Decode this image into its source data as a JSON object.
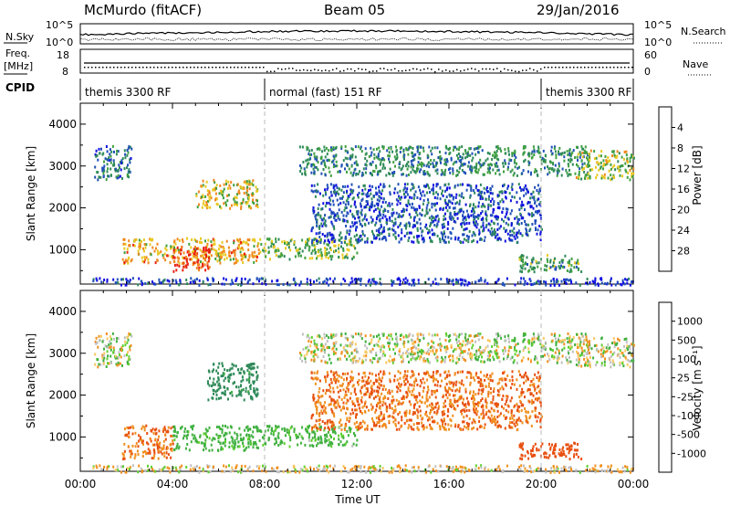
{
  "header": {
    "station": "McMurdo (fitACF)",
    "beam": "Beam 05",
    "date": "29/Jan/2016"
  },
  "top_panels": {
    "nsky_label": "N.Sky",
    "nsky_ticks_left": [
      "10^5",
      "10^0"
    ],
    "nsearch_label": "N.Search",
    "nsearch_ticks_right": [
      "10^5",
      "10^0"
    ],
    "freq_label_1": "Freq.",
    "freq_label_2": "[MHz]",
    "freq_ticks_left": [
      "18",
      "8"
    ],
    "nave_label": "Nave",
    "nave_ticks_right": [
      "60",
      "0"
    ],
    "cpid_label": "CPID",
    "cpid_segments": [
      {
        "label": "themis 3300 RF",
        "start_hour": 0,
        "end_hour": 8
      },
      {
        "label": "normal (fast) 151 RF",
        "start_hour": 8,
        "end_hour": 20
      },
      {
        "label": "themis 3300 RF",
        "start_hour": 20,
        "end_hour": 24
      }
    ]
  },
  "chart_data": [
    {
      "type": "heatmap",
      "panel": "power",
      "ylabel": "Slant Range [km]",
      "xlabel": "",
      "xlim": [
        0,
        24
      ],
      "ylim": [
        180,
        4500
      ],
      "yticks": [
        1000,
        2000,
        3000,
        4000
      ],
      "colorbar": {
        "label": "Power [dB]",
        "ticks": [
          "4",
          "8",
          "12",
          "16",
          "20",
          "24",
          "28"
        ],
        "colors": [
          "#1010e0",
          "#2050b8",
          "#2f8a5a",
          "#40a040",
          "#e8c820",
          "#f08820",
          "#e82010"
        ]
      },
      "regions": [
        {
          "t0": 0.6,
          "t1": 2.2,
          "r0": 2700,
          "r1": 3500,
          "level": 10
        },
        {
          "t0": 1.8,
          "t1": 7.8,
          "r0": 700,
          "r1": 1300,
          "level": 22
        },
        {
          "t0": 4.0,
          "t1": 5.6,
          "r0": 500,
          "r1": 1100,
          "level": 28
        },
        {
          "t0": 5.0,
          "t1": 7.7,
          "r0": 2000,
          "r1": 2700,
          "level": 20
        },
        {
          "t0": 7.8,
          "t1": 12.0,
          "r0": 800,
          "r1": 1300,
          "level": 16
        },
        {
          "t0": 9.5,
          "t1": 22.0,
          "r0": 2800,
          "r1": 3500,
          "level": 12
        },
        {
          "t0": 10.0,
          "t1": 20.0,
          "r0": 1200,
          "r1": 2600,
          "level": 8
        },
        {
          "t0": 19.0,
          "t1": 21.8,
          "r0": 500,
          "r1": 900,
          "level": 14
        },
        {
          "t0": 21.5,
          "t1": 24.0,
          "r0": 2700,
          "r1": 3400,
          "level": 18
        },
        {
          "t0": 0.5,
          "t1": 24.0,
          "r0": 180,
          "r1": 350,
          "level": 6
        }
      ]
    },
    {
      "type": "heatmap",
      "panel": "velocity",
      "ylabel": "Slant Range [km]",
      "xlabel": "Time UT",
      "xlim": [
        0,
        24
      ],
      "ylim": [
        180,
        4500
      ],
      "xticks": [
        "00:00",
        "04:00",
        "08:00",
        "12:00",
        "16:00",
        "20:00",
        "00:00"
      ],
      "yticks": [
        1000,
        2000,
        3000,
        4000
      ],
      "colorbar": {
        "label": "Velocity [m s⁻¹]",
        "ticks": [
          "1000",
          "500",
          "100",
          "25",
          "-25",
          "-100",
          "-500",
          "-1000"
        ],
        "colors": [
          "#2040b0",
          "#2f8a5a",
          "#40b040",
          "#60d030",
          "#c0c0c0",
          "#f8c860",
          "#f09020",
          "#e85010",
          "#e01010"
        ]
      },
      "regions": [
        {
          "t0": 0.6,
          "t1": 2.2,
          "r0": 2700,
          "r1": 3500,
          "level": 0
        },
        {
          "t0": 1.8,
          "t1": 4.0,
          "r0": 500,
          "r1": 1300,
          "level": -300
        },
        {
          "t0": 4.0,
          "t1": 7.8,
          "r0": 700,
          "r1": 1300,
          "level": 150
        },
        {
          "t0": 5.5,
          "t1": 7.7,
          "r0": 1900,
          "r1": 2800,
          "level": 400
        },
        {
          "t0": 7.8,
          "t1": 12.0,
          "r0": 800,
          "r1": 1300,
          "level": 120
        },
        {
          "t0": 9.5,
          "t1": 22.0,
          "r0": 2800,
          "r1": 3500,
          "level": 0
        },
        {
          "t0": 10.0,
          "t1": 20.0,
          "r0": 1200,
          "r1": 2600,
          "level": -300
        },
        {
          "t0": 19.0,
          "t1": 21.8,
          "r0": 500,
          "r1": 900,
          "level": -500
        },
        {
          "t0": 21.5,
          "t1": 24.0,
          "r0": 2700,
          "r1": 3400,
          "level": 0
        },
        {
          "t0": 0.5,
          "t1": 24.0,
          "r0": 180,
          "r1": 350,
          "level": -50
        }
      ]
    }
  ]
}
